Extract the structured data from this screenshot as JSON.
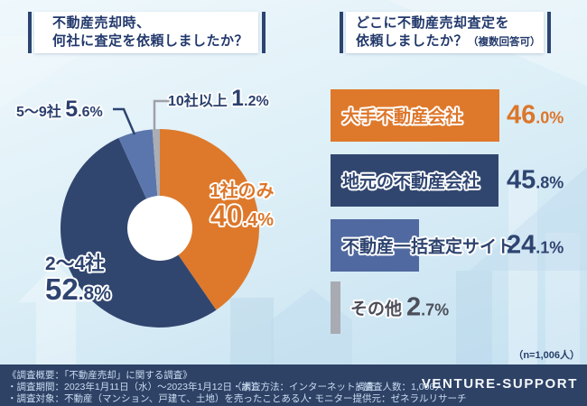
{
  "colors": {
    "accent_navy": "#2C4470",
    "orange": "#DE792B",
    "navy": "#31466F",
    "blue": "#5069A1",
    "gray": "#A9ABB2",
    "footer_bg": "#2E4266",
    "footer_text": "#C9DDF2"
  },
  "headers": {
    "left": {
      "line1": "不動産売却時、",
      "line2": "何社に査定を依頼しましたか？"
    },
    "right": {
      "line1": "どこに不動産売却査定を",
      "line2": "依頼しましたか？",
      "note": "（複数回答可）"
    }
  },
  "chart_data": [
    {
      "type": "pie",
      "title": "不動産売却時、何社に査定を依頼しましたか？",
      "categories": [
        "1社のみ",
        "2〜4社",
        "5〜9社",
        "10社以上"
      ],
      "values": [
        40.4,
        52.8,
        5.6,
        1.2
      ],
      "unit": "%",
      "colors": [
        "#DE792B",
        "#31466F",
        "#5B76AC",
        "#ABADB4"
      ],
      "donut": true,
      "start_angle_deg": 0,
      "direction": "clockwise"
    },
    {
      "type": "bar",
      "orientation": "horizontal",
      "title": "どこに不動産売却査定を依頼しましたか？（複数回答可）",
      "categories": [
        "大手不動産会社",
        "地元の不動産会社",
        "不動産一括査定サイト",
        "その他"
      ],
      "values": [
        46.0,
        45.8,
        24.1,
        2.7
      ],
      "unit": "%",
      "xlim": [
        0,
        50
      ],
      "colors": [
        "#DE792B",
        "#31466F",
        "#5069A1",
        "#A9ABB2"
      ],
      "label_colors": [
        "#DC762A",
        "#2E4470",
        "#2E4470",
        "#4B4E59"
      ]
    }
  ],
  "sample_note": "（n=1,006人）",
  "footer": {
    "line1": "《調査概要：「不動産売却」に関する調査》",
    "row2": [
      "・調査期間：2023年1月11日（水）〜2023年1月12日（木）",
      "・調査方法：インターネット調査",
      "・調査人数：1,006人"
    ],
    "row3": [
      "・調査対象：不動産（マンション、戸建て、土地）を売ったことある人",
      "・モニター提供元：ゼネラルリサーチ"
    ],
    "brand": "VENTURE-SUPPORT"
  }
}
